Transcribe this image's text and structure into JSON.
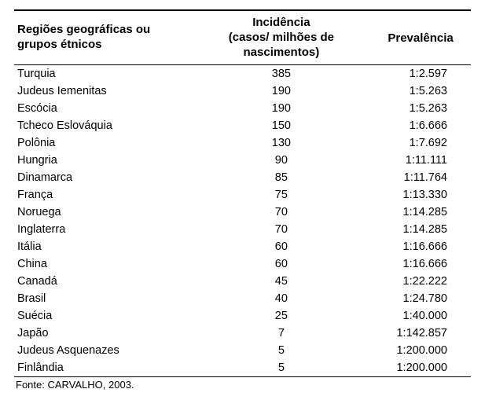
{
  "header": {
    "region_line1": "Regiões geográficas ou",
    "region_line2": "grupos étnicos",
    "incidence_line1": "Incidência",
    "incidence_line2": "(casos/ milhões de nascimentos)",
    "prevalence": "Prevalência"
  },
  "rows": [
    {
      "region": "Turquia",
      "incidence": "385",
      "prevalence": "1:2.597"
    },
    {
      "region": "Judeus Iemenitas",
      "incidence": "190",
      "prevalence": "1:5.263"
    },
    {
      "region": "Escócia",
      "incidence": "190",
      "prevalence": "1:5.263"
    },
    {
      "region": "Tcheco Eslováquia",
      "incidence": "150",
      "prevalence": "1:6.666"
    },
    {
      "region": "Polônia",
      "incidence": "130",
      "prevalence": "1:7.692"
    },
    {
      "region": "Hungria",
      "incidence": "90",
      "prevalence": "1:11.111"
    },
    {
      "region": "Dinamarca",
      "incidence": "85",
      "prevalence": "1:11.764"
    },
    {
      "region": "França",
      "incidence": "75",
      "prevalence": "1:13.330"
    },
    {
      "region": "Noruega",
      "incidence": "70",
      "prevalence": "1:14.285"
    },
    {
      "region": "Inglaterra",
      "incidence": "70",
      "prevalence": "1:14.285"
    },
    {
      "region": "Itália",
      "incidence": "60",
      "prevalence": "1:16.666"
    },
    {
      "region": "China",
      "incidence": "60",
      "prevalence": "1:16.666"
    },
    {
      "region": "Canadá",
      "incidence": "45",
      "prevalence": "1:22.222"
    },
    {
      "region": "Brasil",
      "incidence": "40",
      "prevalence": "1:24.780"
    },
    {
      "region": "Suécia",
      "incidence": "25",
      "prevalence": "1:40.000"
    },
    {
      "region": "Japão",
      "incidence": "7",
      "prevalence": "1:142.857"
    },
    {
      "region": "Judeus Asquenazes",
      "incidence": "5",
      "prevalence": "1:200.000"
    },
    {
      "region": "Finlândia",
      "incidence": "5",
      "prevalence": "1:200.000"
    }
  ],
  "source": "Fonte: CARVALHO, 2003."
}
